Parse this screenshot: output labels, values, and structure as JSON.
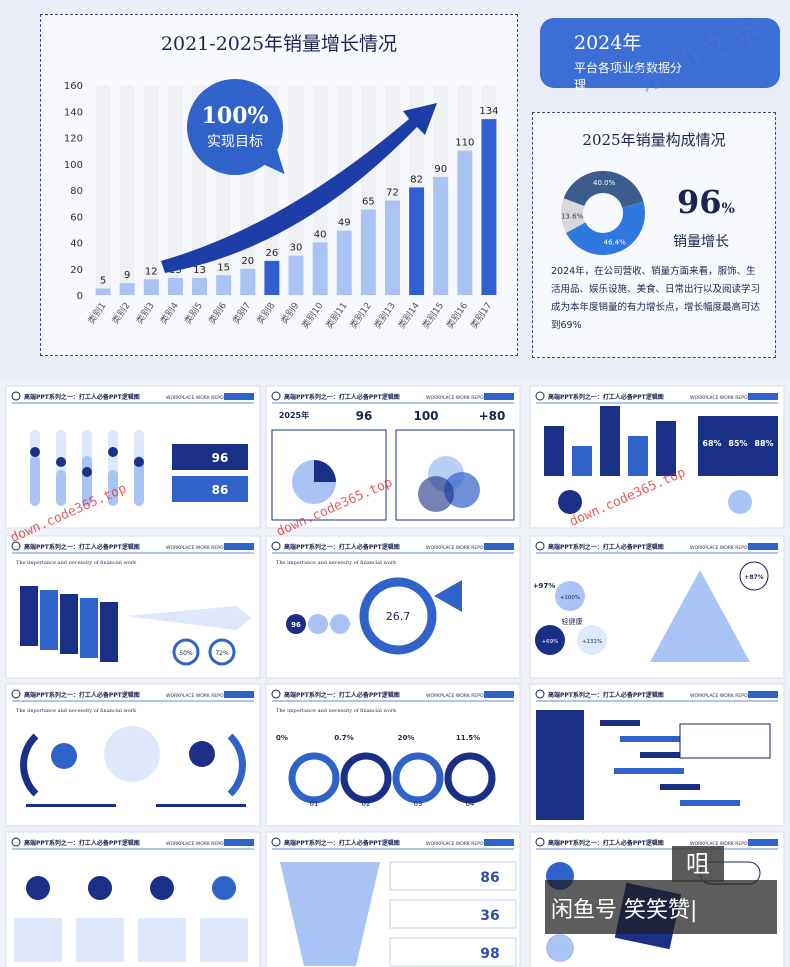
{
  "main_chart": {
    "title": "2021-2025年销量增长情况",
    "bubble_big": "100%",
    "bubble_small": "实现目标",
    "chart_data": {
      "type": "bar",
      "title": "2021-2025年销量增长情况",
      "categories": [
        "类别1",
        "类别2",
        "类别3",
        "类别4",
        "类别5",
        "类别6",
        "类别7",
        "类别8",
        "类别9",
        "类别10",
        "类别11",
        "类别12",
        "类别13",
        "类别14",
        "类别15",
        "类别16",
        "类别17"
      ],
      "values": [
        5,
        9,
        12,
        13,
        13,
        15,
        20,
        26,
        30,
        40,
        49,
        65,
        72,
        82,
        90,
        110,
        134
      ],
      "value_labels": [
        "5",
        "9",
        "12",
        "13",
        "13",
        "15",
        "20",
        "26",
        "30",
        "40",
        "49",
        "65",
        "72",
        "82",
        "90",
        "110",
        "134"
      ],
      "highlight": [
        false,
        false,
        false,
        false,
        false,
        false,
        false,
        true,
        false,
        false,
        false,
        false,
        false,
        true,
        false,
        false,
        true
      ],
      "ylim": [
        0,
        160
      ],
      "yticks": [
        "0",
        "20",
        "40",
        "60",
        "80",
        "100",
        "120",
        "140",
        "160"
      ],
      "colors": {
        "bar": "#a9c3f4",
        "highlight": "#2f5fd0",
        "track": "#eef0f4",
        "arrow": "#1d3ea8"
      }
    }
  },
  "badge": {
    "year": "2024年",
    "sub": "平台各项业务数据分",
    "sub2": "理"
  },
  "mix": {
    "title": "2025年销量构成情况",
    "chart_data": {
      "type": "pie",
      "labels": [
        "13.6%",
        "40.0%",
        "46.4%"
      ],
      "values": [
        13.6,
        40.0,
        46.4
      ],
      "colors": [
        "#d7d9de",
        "#3c5b8f",
        "#2e78e0"
      ]
    },
    "big_pct": "96",
    "big_pct_unit": "%",
    "pct_label": "销量增长",
    "text": "2024年，在公司营收、销量方面来看，服饰、生活用品、娱乐设施、美食、日常出行以及阅读学习成为本年度销量的有力增长点，增长幅度最高可达到69%"
  },
  "watermark": "东加文字",
  "thumbs": {
    "title": "高端PPT系列之一：打工人必备PPT逻辑图",
    "eng": "WORKPLACE WORK REPORT",
    "subtitle": "The importance and necessity of financial work",
    "t2_a": "96",
    "t2_b": "86",
    "t3_a": "2025年",
    "t3_b": "96",
    "t3_c": "100",
    "t3_d": "+80",
    "t4_a": "68%",
    "t4_b": "85%",
    "t4_c": "88%",
    "t5_a": "50%",
    "t5_b": "72%",
    "t6_a": "26.7",
    "t6_b": "96",
    "t7_a": "+97%",
    "t7_b": "+87%",
    "t7_c": "+100%",
    "t7_d": "+69%",
    "t7_e": "+131%",
    "t7_f": "轻健康",
    "t9_a": "0%",
    "t9_b": "0.7%",
    "t9_c": "20%",
    "t9_d": "11.5%",
    "t9_n1": "01",
    "t9_n2": "02",
    "t9_n3": "03",
    "t9_n4": "04",
    "t11_a": "86",
    "t11_b": "36",
    "t11_c": "98",
    "wm_left": "down.code365.top",
    "wm_mid": "down.code365.top",
    "wm_right": "down.code365.top"
  },
  "overlay": {
    "box": "咀",
    "text": "闲鱼号 笑笑赞|"
  }
}
